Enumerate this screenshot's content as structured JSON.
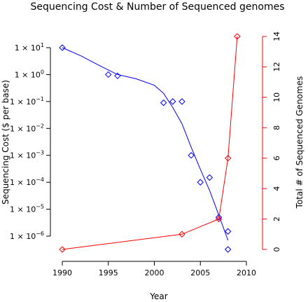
{
  "chart_data": {
    "type": "scatter",
    "title": "Sequencing Cost & Number of Sequenced genomes",
    "xlabel": "Year",
    "ylabel_left": "Sequencing Cost ($ per base)",
    "ylabel_right": "Total # of Sequenced Genomes",
    "xlim": [
      1990,
      2010
    ],
    "xticks": [
      1990,
      1995,
      2000,
      2005,
      2010
    ],
    "xtick_labels": [
      "1990",
      "1995",
      "2000",
      "2005",
      "2010"
    ],
    "y_left_scale": "log10",
    "y_left_ticks_exp": [
      1,
      0,
      -1,
      -2,
      -3,
      -4,
      -5,
      -6
    ],
    "y_left_tick_labels": [
      "10",
      "10",
      "10",
      "10",
      "10",
      "10",
      "10",
      "10"
    ],
    "y_left_tick_prefix": "1 ×",
    "y_left_tick_exponents": [
      "1",
      "0",
      "−1",
      "−2",
      "−3",
      "−4",
      "−5",
      "−6"
    ],
    "y_right_ticks": [
      0,
      2,
      4,
      6,
      8,
      10,
      12,
      14
    ],
    "y_right_tick_labels": [
      "0",
      "2",
      "4",
      "6",
      "8",
      "10",
      "12",
      "14"
    ],
    "series": [
      {
        "axis": "left",
        "color": "#0000ff",
        "marker": "diamond",
        "x": [
          1990,
          1995,
          1996,
          2001,
          2002,
          2003,
          2004,
          2005,
          2006,
          2007,
          2008
        ],
        "y": [
          10,
          1.0,
          0.9,
          0.09,
          0.1,
          0.1,
          0.001,
          0.0001,
          0.00015,
          5e-06,
          1.5e-06
        ],
        "fit": {
          "x": [
            1990,
            1992,
            1994,
            1996,
            1998,
            2000,
            2001,
            2002,
            2003,
            2004,
            2005,
            2006,
            2007,
            2008
          ],
          "y": [
            10,
            5,
            2.2,
            1.0,
            0.7,
            0.4,
            0.2,
            0.06,
            0.015,
            0.002,
            0.0003,
            5e-05,
            6e-06,
            7e-07
          ]
        }
      },
      {
        "axis": "right",
        "color": "#ff0000",
        "marker": "diamond",
        "x": [
          1990,
          2003,
          2007,
          2008,
          2009
        ],
        "y": [
          0,
          1,
          2,
          6,
          14
        ],
        "connected": true
      }
    ],
    "extra_points": [
      {
        "series": 0,
        "x": 2008,
        "y_right": 0,
        "color": "#0000ff"
      }
    ]
  }
}
